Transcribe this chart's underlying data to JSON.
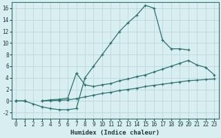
{
  "xlabel": "Humidex (Indice chaleur)",
  "bg_color": "#d8eef0",
  "grid_color": "#b8d8dc",
  "line_color": "#2a7070",
  "xlim": [
    -0.5,
    23.5
  ],
  "ylim": [
    -3.0,
    17.0
  ],
  "xticks": [
    0,
    1,
    2,
    3,
    4,
    5,
    6,
    7,
    8,
    9,
    10,
    11,
    12,
    13,
    14,
    15,
    16,
    17,
    18,
    19,
    20,
    21,
    22,
    23
  ],
  "yticks": [
    -2,
    0,
    2,
    4,
    6,
    8,
    10,
    12,
    14,
    16
  ],
  "line1_x": [
    0,
    1,
    2,
    3,
    4,
    5,
    6,
    7,
    8,
    9,
    10,
    11,
    12,
    13,
    14,
    15,
    16,
    17,
    18,
    19,
    20
  ],
  "line1_y": [
    0.0,
    0.0,
    -0.5,
    -1.0,
    -1.3,
    -1.5,
    -1.5,
    -1.3,
    4.0,
    6.0,
    8.0,
    10.0,
    12.0,
    13.5,
    14.8,
    16.5,
    16.0,
    10.5,
    9.0,
    9.0,
    8.8
  ],
  "line2_x": [
    0,
    1,
    2,
    3,
    4,
    5,
    6,
    7,
    8,
    9,
    10,
    11,
    12,
    13,
    14,
    15,
    16,
    17,
    18,
    19,
    20,
    21,
    22,
    23
  ],
  "line2_y": [
    0.0,
    0.0,
    null,
    0.0,
    0.2,
    0.3,
    0.5,
    4.8,
    2.8,
    2.5,
    2.8,
    3.0,
    3.5,
    3.8,
    4.2,
    4.5,
    5.0,
    5.5,
    6.0,
    6.5,
    7.0,
    6.2,
    5.8,
    4.5
  ],
  "line3_x": [
    0,
    1,
    2,
    3,
    4,
    5,
    6,
    7,
    8,
    9,
    10,
    11,
    12,
    13,
    14,
    15,
    16,
    17,
    18,
    19,
    20,
    21,
    22,
    23
  ],
  "line3_y": [
    0.0,
    0.0,
    null,
    0.0,
    0.05,
    0.1,
    0.2,
    0.4,
    0.7,
    1.0,
    1.3,
    1.5,
    1.8,
    2.0,
    2.2,
    2.5,
    2.7,
    2.9,
    3.1,
    3.3,
    3.5,
    3.6,
    3.7,
    3.8
  ]
}
